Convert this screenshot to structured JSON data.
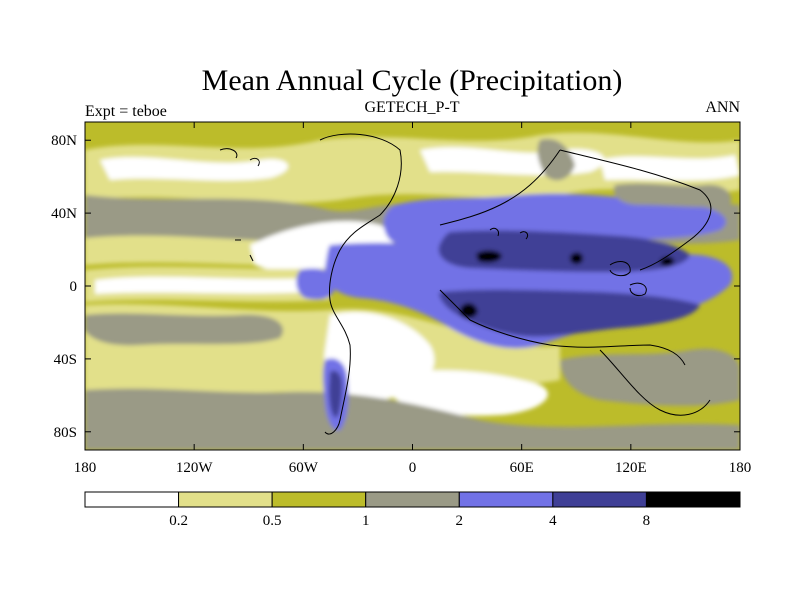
{
  "title": "Mean Annual Cycle (Precipitation)",
  "left_label": "Expt = teboe",
  "center_label": "GETECH_P-T",
  "right_label": "ANN",
  "lon_ticks": [
    {
      "value": -180,
      "label": "180"
    },
    {
      "value": -120,
      "label": "120W"
    },
    {
      "value": -60,
      "label": "60W"
    },
    {
      "value": 0,
      "label": "0"
    },
    {
      "value": 60,
      "label": "60E"
    },
    {
      "value": 120,
      "label": "120E"
    },
    {
      "value": 180,
      "label": "180"
    }
  ],
  "lat_ticks": [
    {
      "value": 80,
      "label": "80N"
    },
    {
      "value": 40,
      "label": "40N"
    },
    {
      "value": 0,
      "label": "0"
    },
    {
      "value": -40,
      "label": "40S"
    },
    {
      "value": -80,
      "label": "80S"
    }
  ],
  "lon_range": [
    -180,
    180
  ],
  "lat_range": [
    -90,
    90
  ],
  "colorbar": {
    "boundaries": [
      0.2,
      0.5,
      1,
      2,
      4,
      8
    ],
    "labels": [
      "0.2",
      "0.5",
      "1",
      "2",
      "4",
      "8"
    ],
    "colors": [
      "#ffffff",
      "#e2e08a",
      "#bcbc2a",
      "#9a9a86",
      "#7272e6",
      "#3f3f96",
      "#000000"
    ]
  },
  "colors": {
    "background": "#ffffff",
    "coastline": "#000000"
  }
}
